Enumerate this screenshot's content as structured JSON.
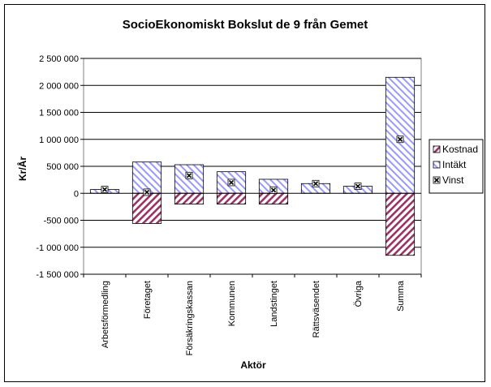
{
  "chart_data": {
    "type": "bar",
    "title": "SocioEkonomiskt Bokslut de 9 från Gemet",
    "xlabel": "Aktör",
    "ylabel": "Kr/År",
    "ylim": [
      -1500000,
      2500000
    ],
    "y_ticks": [
      2500000,
      2000000,
      1500000,
      1000000,
      500000,
      0,
      -500000,
      -1000000,
      -1500000
    ],
    "y_tick_labels": [
      "2 500 000",
      "2 000 000",
      "1 500 000",
      "1 000 000",
      "500 000",
      "0",
      "-500 000",
      "-1 000 000",
      "-1 500 000"
    ],
    "categories": [
      "Arbetsförmedling",
      "Företaget",
      "Försäkringskassan",
      "Kommunen",
      "Landstinget",
      "Rättsväsendet",
      "Övriga",
      "Summa"
    ],
    "series": [
      {
        "name": "Kostnad",
        "kind": "bar",
        "values": [
          0,
          -560000,
          -200000,
          -200000,
          -200000,
          0,
          0,
          -1150000
        ]
      },
      {
        "name": "Intäkt",
        "kind": "bar",
        "values": [
          70000,
          580000,
          530000,
          400000,
          260000,
          180000,
          130000,
          2150000
        ]
      },
      {
        "name": "Vinst",
        "kind": "marker",
        "values": [
          70000,
          20000,
          330000,
          200000,
          60000,
          180000,
          130000,
          1000000
        ]
      }
    ],
    "legend_position": "right",
    "grid": "horizontal",
    "colors": {
      "plot_background": "#c0c0c0",
      "kostnad": "#993366",
      "intakt": "#9999ff",
      "vinst": "#000000"
    }
  }
}
